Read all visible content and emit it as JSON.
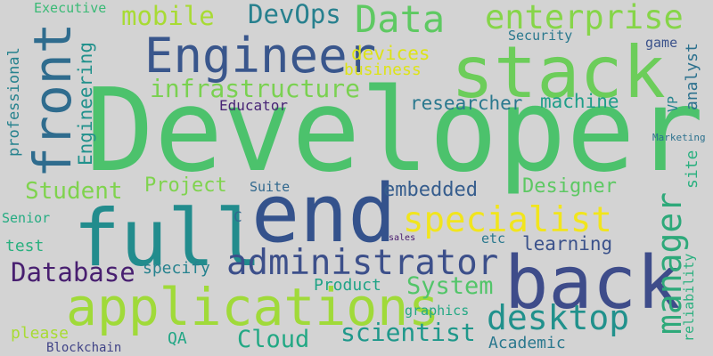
{
  "words": [
    {
      "text": "Developer",
      "color": "#4cc26c"
    },
    {
      "text": "end",
      "color": "#34528c"
    },
    {
      "text": "back",
      "color": "#3e4c8a"
    },
    {
      "text": "full",
      "color": "#228c8d"
    },
    {
      "text": "stack",
      "color": "#6ccd5a"
    },
    {
      "text": "front",
      "color": "#2f6c8e"
    },
    {
      "text": "applications",
      "color": "#a0da39"
    },
    {
      "text": "Engineer",
      "color": "#39568c"
    },
    {
      "text": "administrator",
      "color": "#3c4f8a"
    },
    {
      "text": "manager",
      "color": "#2ea97a"
    },
    {
      "text": "specialist",
      "color": "#f1e51d"
    },
    {
      "text": "desktop",
      "color": "#21918c"
    },
    {
      "text": "Data",
      "color": "#5ec962"
    },
    {
      "text": "enterprise",
      "color": "#86d549"
    },
    {
      "text": "infrastructure",
      "color": "#7ad151"
    },
    {
      "text": "scientist",
      "color": "#1f988b"
    },
    {
      "text": "Database",
      "color": "#481f70"
    },
    {
      "text": "mobile",
      "color": "#a8db34"
    },
    {
      "text": "DevOps",
      "color": "#27808e"
    },
    {
      "text": "Student",
      "color": "#7fd34e"
    },
    {
      "text": "System",
      "color": "#52c569"
    },
    {
      "text": "Cloud",
      "color": "#22a884"
    },
    {
      "text": "embedded",
      "color": "#365d8d"
    },
    {
      "text": "Project",
      "color": "#7fd34e"
    },
    {
      "text": "Designer",
      "color": "#5dc863"
    },
    {
      "text": "researcher",
      "color": "#2a788e"
    },
    {
      "text": "machine",
      "color": "#1f9e89"
    },
    {
      "text": "devices",
      "color": "#dde318"
    },
    {
      "text": "business",
      "color": "#dde318"
    },
    {
      "text": "learning",
      "color": "#3b528b"
    },
    {
      "text": "Product",
      "color": "#20a386"
    },
    {
      "text": "specify",
      "color": "#26828e"
    },
    {
      "text": "Engineering",
      "color": "#21918c"
    },
    {
      "text": "professional",
      "color": "#26828e"
    },
    {
      "text": "Academic",
      "color": "#2a788e"
    },
    {
      "text": "please",
      "color": "#a8db34"
    },
    {
      "text": "QA",
      "color": "#21a685"
    },
    {
      "text": "test",
      "color": "#2ab07f"
    },
    {
      "text": "Educator",
      "color": "#482576"
    },
    {
      "text": "Security",
      "color": "#2a788e"
    },
    {
      "text": "analyst",
      "color": "#2c718e"
    },
    {
      "text": "site",
      "color": "#2ab07f"
    },
    {
      "text": "reliability",
      "color": "#2ab07f"
    },
    {
      "text": "Executive",
      "color": "#3aba76"
    },
    {
      "text": "Suite",
      "color": "#31688e"
    },
    {
      "text": "Senior",
      "color": "#25ac82"
    },
    {
      "text": "graphics",
      "color": "#22a884"
    },
    {
      "text": "Blockchain",
      "color": "#404387"
    },
    {
      "text": "VP",
      "color": "#25848e"
    },
    {
      "text": "game",
      "color": "#3b528b"
    },
    {
      "text": "C",
      "color": "#31688e"
    },
    {
      "text": "etc",
      "color": "#2a788e"
    },
    {
      "text": "Marketing",
      "color": "#2c718e"
    },
    {
      "text": "sales",
      "color": "#481a6c"
    }
  ]
}
